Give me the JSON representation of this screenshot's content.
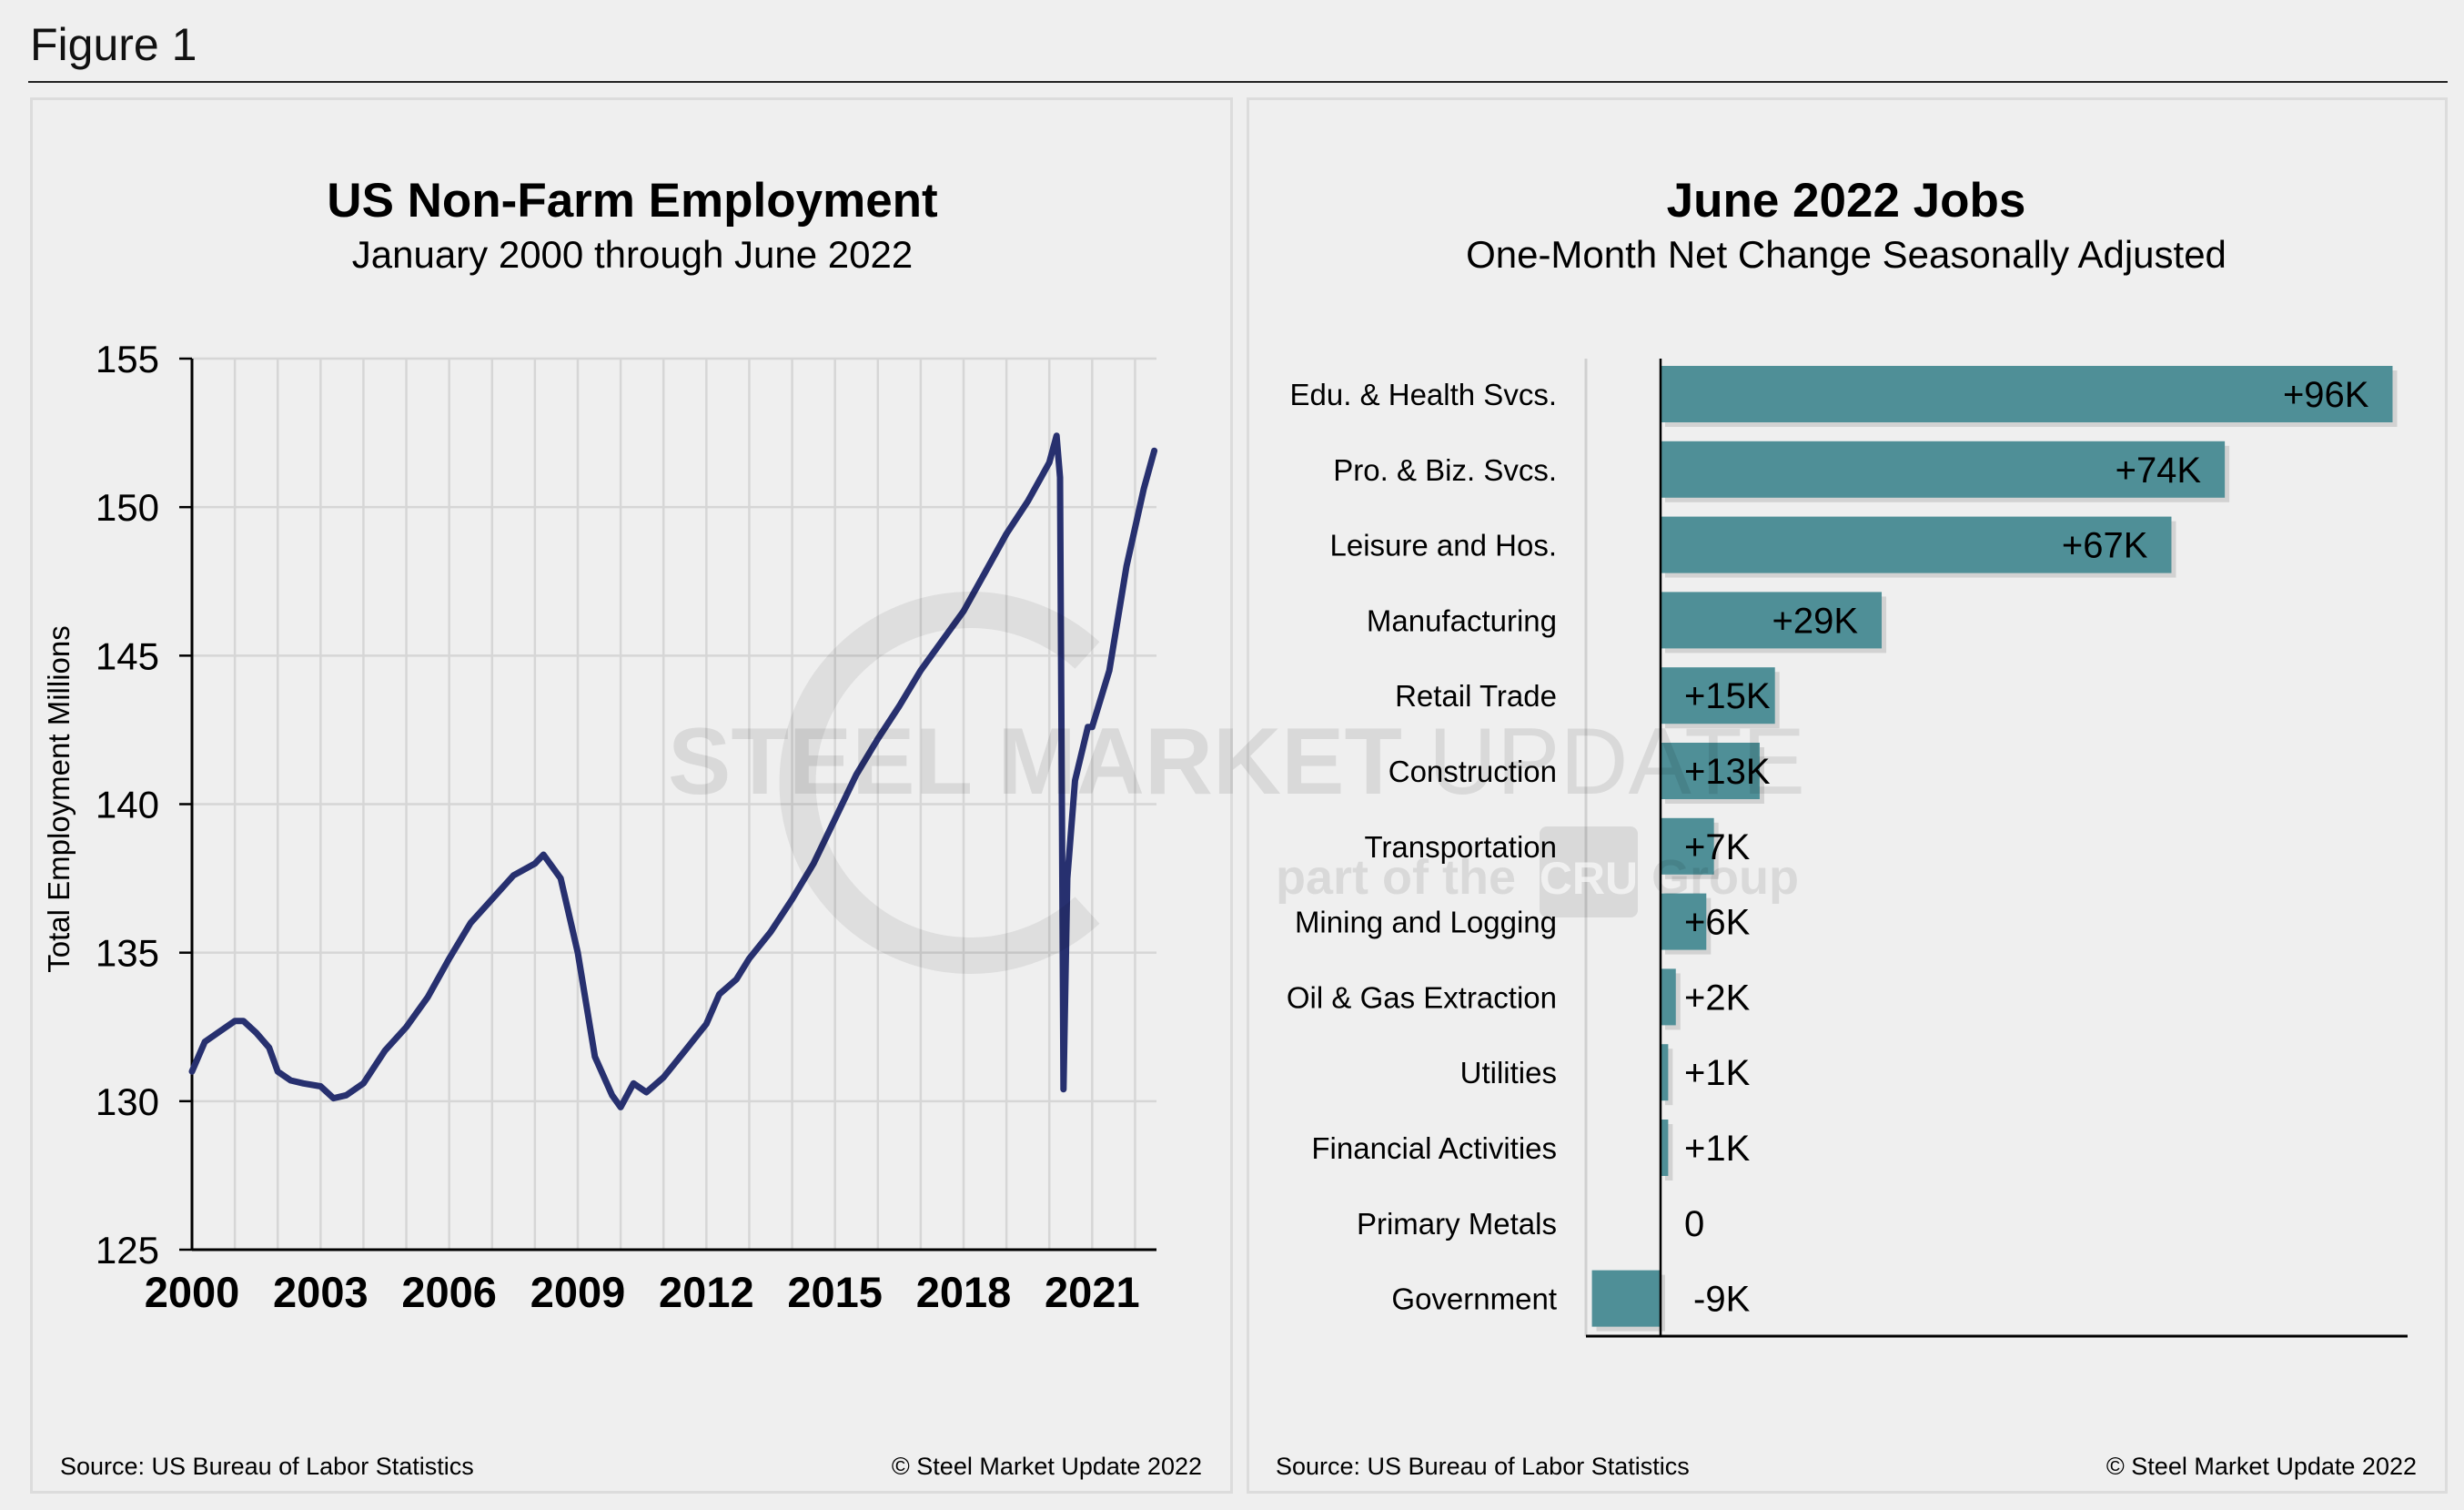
{
  "figure_label": "Figure 1",
  "left_footer": {
    "source": "Source: US Bureau  of Labor Statistics",
    "copyright": "© Steel Market Update 2022"
  },
  "right_footer": {
    "source": "Source: US Bureau  of Labor Statistics",
    "copyright": "© Steel Market Update 2022"
  },
  "watermark": {
    "line1_bold": "STEEL MARKET",
    "line1_light": "UPDATE",
    "line2_a": "part of the",
    "line2_logo": "CRU",
    "line2_b": "Group"
  },
  "colors": {
    "line": "#27306f",
    "bar": "#4f8f97",
    "grid": "#d6d6d6",
    "background": "#efefef"
  },
  "chart_data": [
    {
      "type": "line",
      "title": "US Non-Farm Employment",
      "subtitle": "January 2000 through June 2022",
      "xlabel": "",
      "ylabel": "Total Employment Millions",
      "xlim": [
        2000,
        2022.5
      ],
      "ylim": [
        125,
        155
      ],
      "x_ticks": [
        "2000",
        "2003",
        "2006",
        "2009",
        "2012",
        "2015",
        "2018",
        "2021"
      ],
      "y_ticks": [
        "125",
        "130",
        "135",
        "140",
        "145",
        "150",
        "155"
      ],
      "grid": true,
      "series": [
        {
          "points": [
            [
              2000.0,
              131.0
            ],
            [
              2000.3,
              132.0
            ],
            [
              2000.6,
              132.3
            ],
            [
              2001.0,
              132.7
            ],
            [
              2001.2,
              132.7
            ],
            [
              2001.5,
              132.3
            ],
            [
              2001.8,
              131.8
            ],
            [
              2002.0,
              131.0
            ],
            [
              2002.3,
              130.7
            ],
            [
              2002.6,
              130.6
            ],
            [
              2003.0,
              130.5
            ],
            [
              2003.3,
              130.1
            ],
            [
              2003.6,
              130.2
            ],
            [
              2004.0,
              130.6
            ],
            [
              2004.5,
              131.7
            ],
            [
              2005.0,
              132.5
            ],
            [
              2005.5,
              133.5
            ],
            [
              2006.0,
              134.8
            ],
            [
              2006.5,
              136.0
            ],
            [
              2007.0,
              136.8
            ],
            [
              2007.5,
              137.6
            ],
            [
              2008.0,
              138.0
            ],
            [
              2008.2,
              138.3
            ],
            [
              2008.6,
              137.5
            ],
            [
              2009.0,
              135.0
            ],
            [
              2009.4,
              131.5
            ],
            [
              2009.8,
              130.2
            ],
            [
              2010.0,
              129.8
            ],
            [
              2010.3,
              130.6
            ],
            [
              2010.6,
              130.3
            ],
            [
              2011.0,
              130.8
            ],
            [
              2011.5,
              131.7
            ],
            [
              2012.0,
              132.6
            ],
            [
              2012.3,
              133.6
            ],
            [
              2012.7,
              134.1
            ],
            [
              2013.0,
              134.8
            ],
            [
              2013.5,
              135.7
            ],
            [
              2014.0,
              136.8
            ],
            [
              2014.5,
              138.0
            ],
            [
              2015.0,
              139.5
            ],
            [
              2015.5,
              141.0
            ],
            [
              2016.0,
              142.2
            ],
            [
              2016.5,
              143.3
            ],
            [
              2017.0,
              144.5
            ],
            [
              2017.5,
              145.5
            ],
            [
              2018.0,
              146.5
            ],
            [
              2018.5,
              147.8
            ],
            [
              2019.0,
              149.1
            ],
            [
              2019.5,
              150.2
            ],
            [
              2020.0,
              151.5
            ],
            [
              2020.17,
              152.4
            ],
            [
              2020.25,
              151.0
            ],
            [
              2020.33,
              130.4
            ],
            [
              2020.42,
              137.5
            ],
            [
              2020.6,
              140.8
            ],
            [
              2020.9,
              142.6
            ],
            [
              2021.0,
              142.6
            ],
            [
              2021.4,
              144.5
            ],
            [
              2021.8,
              148.0
            ],
            [
              2022.2,
              150.6
            ],
            [
              2022.45,
              151.9
            ]
          ]
        }
      ]
    },
    {
      "type": "bar",
      "orientation": "horizontal",
      "title": "June 2022 Jobs",
      "subtitle": "One-Month Net Change Seasonally Adjusted",
      "unit": "thousands",
      "categories": [
        "Edu. & Health Svcs.",
        "Pro. & Biz. Svcs.",
        "Leisure and Hos.",
        "Manufacturing",
        "Retail Trade",
        "Construction",
        "Transportation",
        "Mining and Logging",
        "Oil & Gas Extraction",
        "Utilities",
        "Financial Activities",
        "Primary Metals",
        "Government"
      ],
      "values": [
        96,
        74,
        67,
        29,
        15,
        13,
        7,
        6,
        2,
        1,
        1,
        0,
        -9
      ],
      "data_labels": [
        "+96K",
        "+74K",
        "+67K",
        "+29K",
        "+15K",
        "+13K",
        "+7K",
        "+6K",
        "+2K",
        "+1K",
        "+1K",
        "0",
        "-9K"
      ]
    }
  ]
}
